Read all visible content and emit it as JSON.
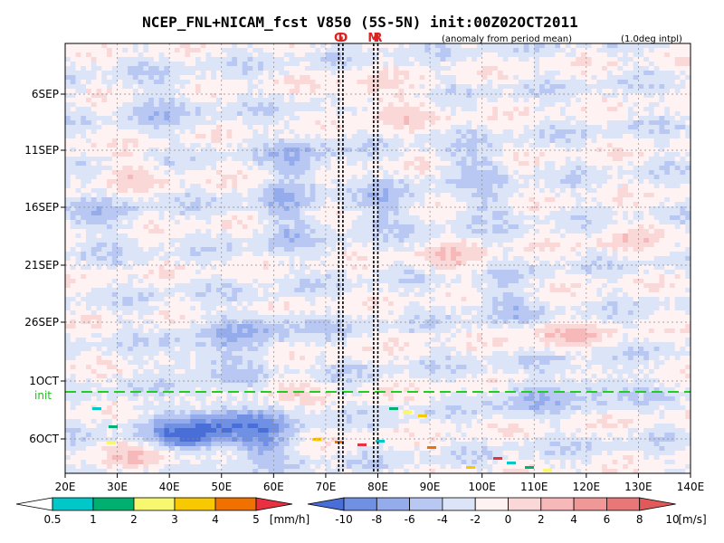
{
  "chart_data": {
    "type": "heatmap",
    "title": "NCEP_FNL+NICAM_fcst V850 (5S-5N) init:00Z02OCT2011",
    "subtitle_left": "(anomaly from period mean)",
    "subtitle_right": "(1.0deg intpl)",
    "x_ticks": [
      "20E",
      "30E",
      "40E",
      "50E",
      "60E",
      "70E",
      "80E",
      "90E",
      "100E",
      "110E",
      "120E",
      "130E",
      "140E"
    ],
    "y_ticks": [
      "6SEP",
      "11SEP",
      "16SEP",
      "21SEP",
      "26SEP",
      "1OCT",
      "6OCT"
    ],
    "x_range": [
      20,
      140
    ],
    "init_label": "init",
    "markers": [
      {
        "label": "G",
        "lon": 72.5
      },
      {
        "label": "D",
        "lon": 73.3
      },
      {
        "label": "M",
        "lon": 79.2
      },
      {
        "label": "R",
        "lon": 80.0
      }
    ],
    "precip_colorbar": {
      "labels": [
        "0.5",
        "1",
        "2",
        "3",
        "4",
        "5"
      ],
      "unit": "[mm/h]",
      "colors": [
        "#00c8c8",
        "#00b070",
        "#f8f870",
        "#f8c800",
        "#f07000",
        "#e83040"
      ]
    },
    "wind_colorbar": {
      "labels": [
        "-10",
        "-8",
        "-6",
        "-4",
        "-2",
        "0",
        "2",
        "4",
        "6",
        "8",
        "10"
      ],
      "unit": "[m/s]",
      "colors": [
        "#4a6ed8",
        "#7090e4",
        "#94acec",
        "#b8c8f2",
        "#dce4f8",
        "#fff2f2",
        "#fbd8d8",
        "#f6b8b8",
        "#f09898",
        "#e87878",
        "#e05a5a"
      ]
    }
  }
}
